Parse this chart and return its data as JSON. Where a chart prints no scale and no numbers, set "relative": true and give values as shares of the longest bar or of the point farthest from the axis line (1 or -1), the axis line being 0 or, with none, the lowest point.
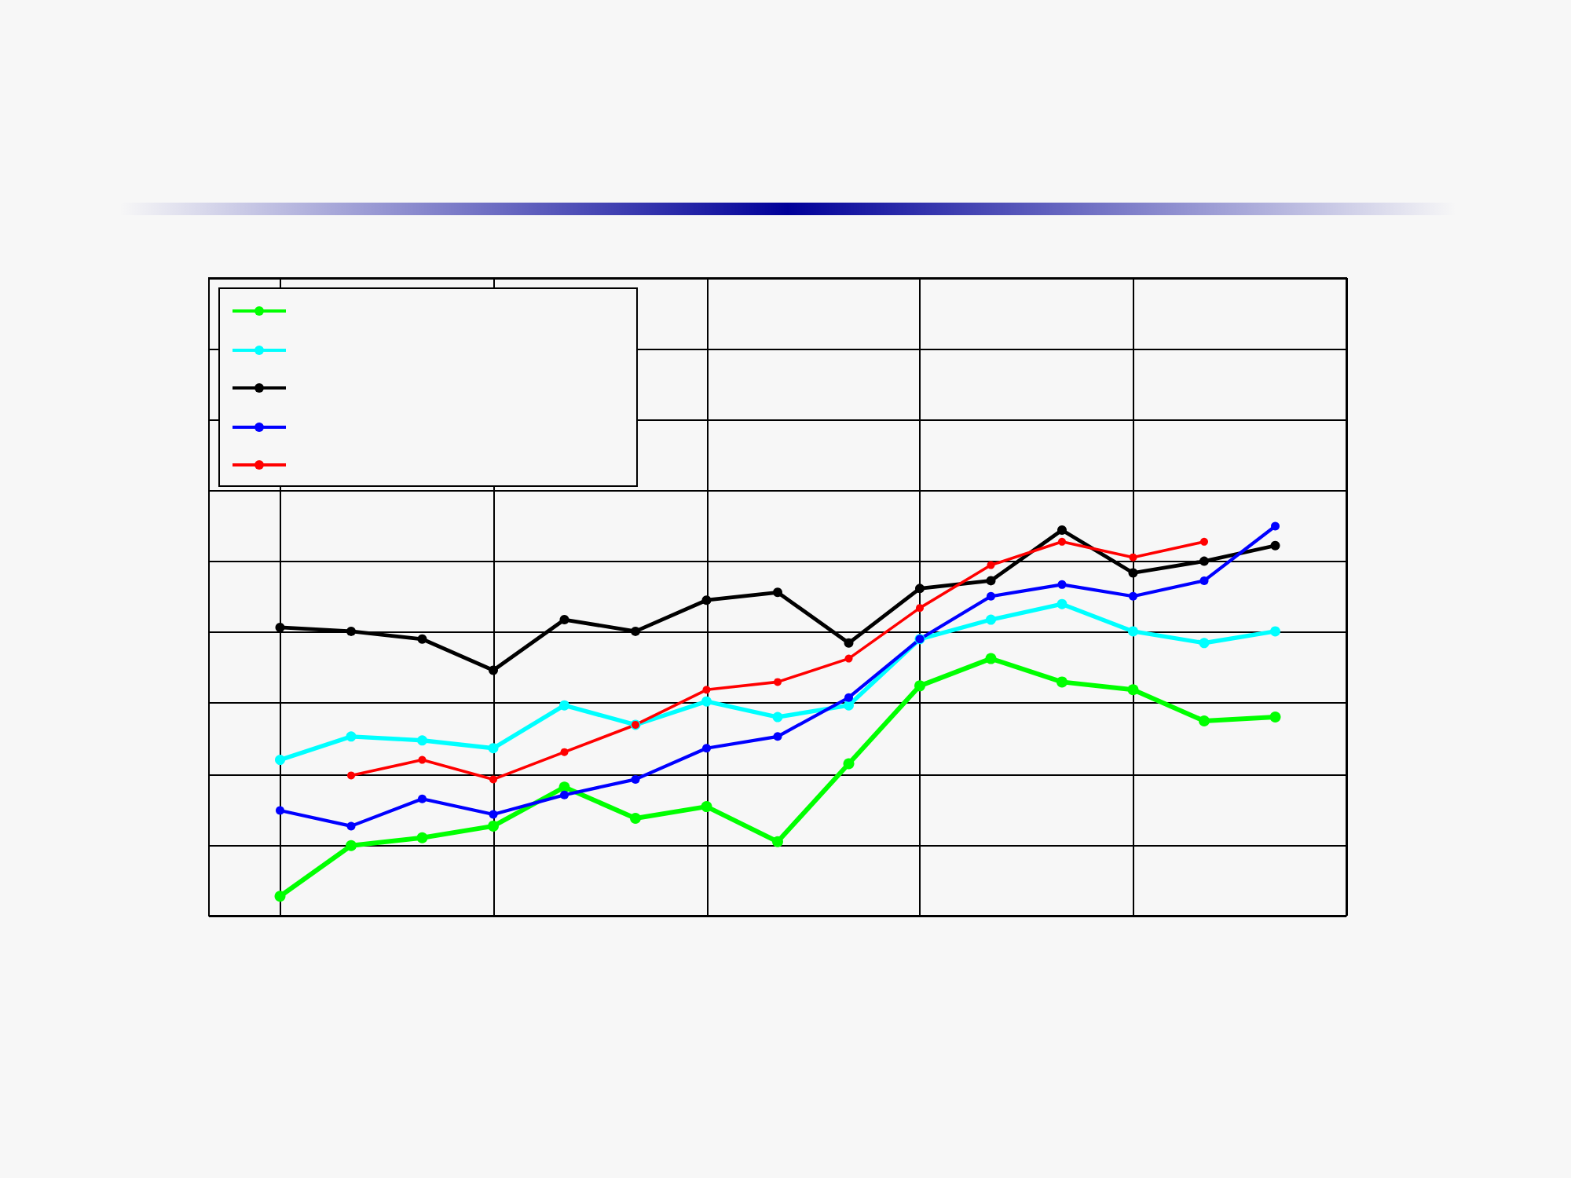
{
  "chart_data": {
    "type": "line",
    "relative": true,
    "grid": true,
    "marker": "circle",
    "line_style": "solid",
    "categories": [
      null,
      null,
      null,
      null,
      null,
      null,
      null,
      null,
      null,
      null,
      null,
      null,
      null,
      null,
      null
    ],
    "series": [
      {
        "color": "#00ff00",
        "values": [
          0.05,
          0.18,
          0.2,
          0.23,
          0.33,
          0.25,
          0.28,
          0.19,
          0.39,
          0.59,
          0.66,
          0.6,
          0.58,
          0.5,
          0.51
        ]
      },
      {
        "color": "#00ffff",
        "values": [
          0.4,
          0.46,
          0.45,
          0.43,
          0.54,
          0.49,
          0.55,
          0.51,
          0.54,
          0.71,
          0.76,
          0.8,
          0.73,
          0.7,
          0.73
        ]
      },
      {
        "color": "#000000",
        "values": [
          0.74,
          0.73,
          0.71,
          0.63,
          0.76,
          0.73,
          0.81,
          0.83,
          0.7,
          0.84,
          0.86,
          0.99,
          0.88,
          0.91,
          0.95
        ]
      },
      {
        "color": "#0000ff",
        "values": [
          0.27,
          0.23,
          0.3,
          0.26,
          0.31,
          0.35,
          0.43,
          0.46,
          0.56,
          0.71,
          0.82,
          0.85,
          0.82,
          0.86,
          1
        ]
      },
      {
        "color": "#ff0000",
        "values": [
          null,
          0.36,
          0.4,
          0.35,
          0.42,
          0.49,
          0.58,
          0.6,
          0.66,
          0.79,
          0.9,
          0.96,
          0.92,
          0.96,
          null
        ]
      }
    ]
  }
}
